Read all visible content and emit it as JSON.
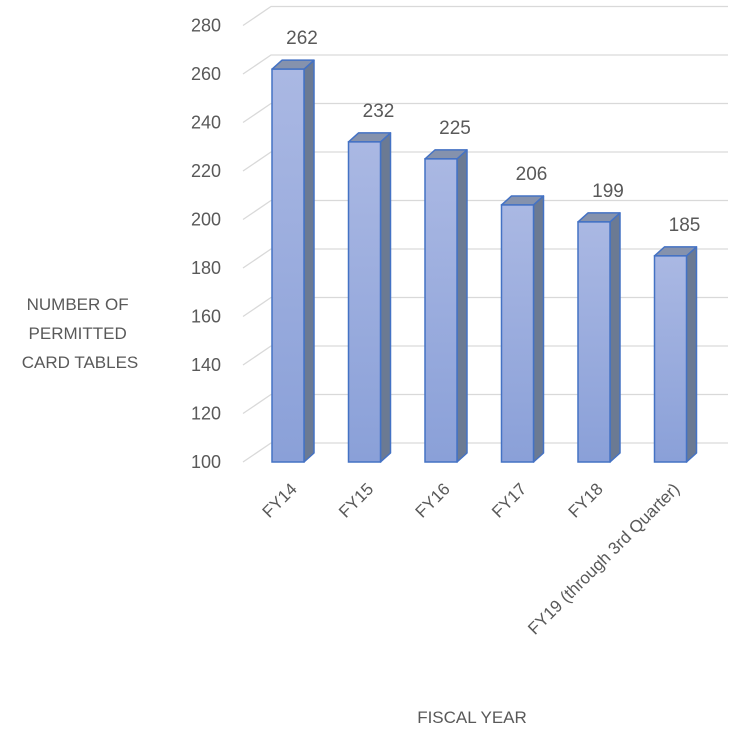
{
  "chart_data": {
    "type": "bar",
    "style": "3d-column",
    "title": "",
    "categories": [
      "FY14",
      "FY15",
      "FY16",
      "FY17",
      "FY18",
      "FY19 (through 3rd Quarter)"
    ],
    "values": [
      262,
      232,
      225,
      206,
      199,
      185
    ],
    "data_labels": [
      "262",
      "232",
      "225",
      "206",
      "199",
      "185"
    ],
    "xlabel": "FISCAL YEAR",
    "ylabel_lines": [
      "NUMBER OF",
      "PERMITTED",
      "CARD TABLES"
    ],
    "ylim": [
      100,
      280
    ],
    "yticks": [
      100,
      120,
      140,
      160,
      180,
      200,
      220,
      240,
      260,
      280
    ],
    "ytick_labels": [
      "100",
      "120",
      "140",
      "160",
      "180",
      "200",
      "220",
      "240",
      "260",
      "280"
    ],
    "grid": true,
    "legend": "none",
    "colors": {
      "bar_front_top": "#aab8e3",
      "bar_front_bottom": "#8aa0d8",
      "bar_side": "#6b7a93",
      "bar_top": "#8592ad",
      "bar_edge": "#4472c4",
      "grid": "#d9d9d9",
      "text": "#595959"
    }
  }
}
